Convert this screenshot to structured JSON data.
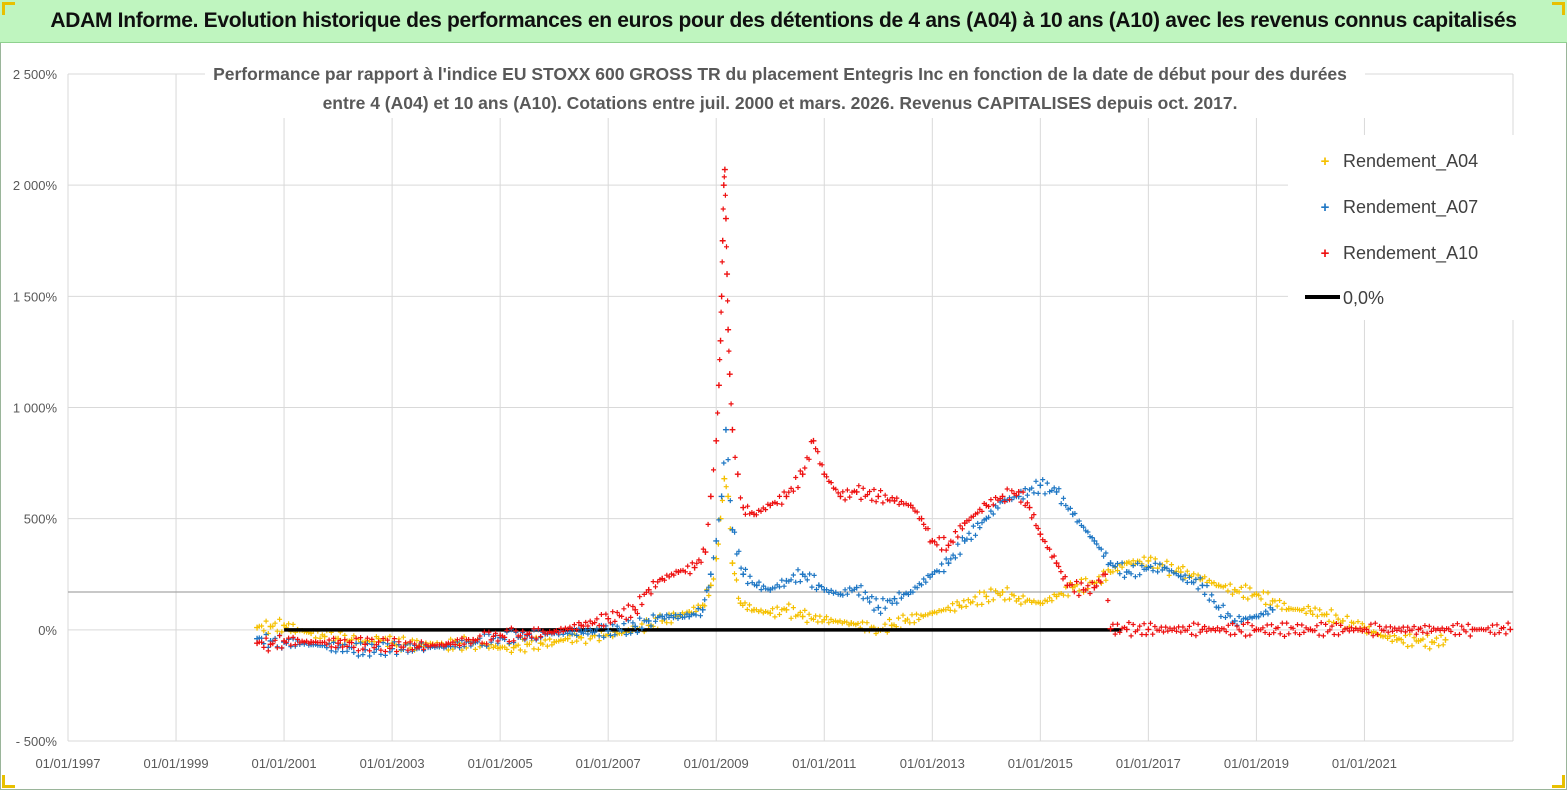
{
  "header": {
    "banner": "ADAM Informe. Evolution historique des performances en euros pour des détentions de 4 ans (A04) à 10 ans (A10) avec les revenus connus capitalisés"
  },
  "colors": {
    "banner_bg": "#bff5bf",
    "A04": "#f5c000",
    "A07": "#1f77c4",
    "A10": "#ee1111",
    "zero_line": "#000000",
    "grid": "#d9d9d9",
    "corner": "#e8c000"
  },
  "chart_data": {
    "type": "scatter",
    "title_lines": [
      "Performance par rapport à l'indice EU STOXX 600 GROSS TR  du placement Entegris Inc en fonction de la date de début pour des durées",
      "entre 4 (A04) et 10 ans (A10).  Cotations entre juil. 2000 et mars. 2026. Revenus CAPITALISES depuis oct. 2017."
    ],
    "xlabel": "",
    "ylabel": "",
    "xlim": [
      1997.0,
      2023.75
    ],
    "ylim": [
      -500,
      2500
    ],
    "x_tick_values": [
      1997,
      1999,
      2001,
      2003,
      2005,
      2007,
      2009,
      2011,
      2013,
      2015,
      2017,
      2019,
      2021
    ],
    "x_tick_labels": [
      "01/01/1997",
      "01/01/1999",
      "01/01/2001",
      "01/01/2003",
      "01/01/2005",
      "01/01/2007",
      "01/01/2009",
      "01/01/2011",
      "01/01/2013",
      "01/01/2015",
      "01/01/2017",
      "01/01/2019",
      "01/01/2021"
    ],
    "y_tick_values": [
      -500,
      0,
      500,
      1000,
      1500,
      2000,
      2500
    ],
    "y_tick_labels": [
      "- 500%",
      "0%",
      "500%",
      "1 000%",
      "1 500%",
      "2 000%",
      "2 500%"
    ],
    "grid": true,
    "reference_line_value": 170,
    "legend_position": "top-right",
    "legend": [
      "Rendement_A04",
      "Rendement_A07",
      "Rendement_A10",
      "0,0%"
    ],
    "series": [
      {
        "name": "Rendement_A04",
        "marker": "+",
        "points": [
          [
            2000.5,
            10
          ],
          [
            2000.75,
            15
          ],
          [
            2001.0,
            20
          ],
          [
            2001.25,
            0
          ],
          [
            2001.5,
            -15
          ],
          [
            2001.75,
            -30
          ],
          [
            2002.0,
            -40
          ],
          [
            2002.25,
            -45
          ],
          [
            2002.5,
            -55
          ],
          [
            2002.75,
            -40
          ],
          [
            2003.0,
            -60
          ],
          [
            2003.25,
            -65
          ],
          [
            2003.5,
            -70
          ],
          [
            2003.75,
            -65
          ],
          [
            2004.0,
            -70
          ],
          [
            2004.25,
            -60
          ],
          [
            2004.5,
            -60
          ],
          [
            2004.75,
            -70
          ],
          [
            2005.0,
            -80
          ],
          [
            2005.25,
            -80
          ],
          [
            2005.5,
            -65
          ],
          [
            2005.75,
            -60
          ],
          [
            2006.0,
            -55
          ],
          [
            2006.25,
            -40
          ],
          [
            2006.5,
            -35
          ],
          [
            2006.75,
            -25
          ],
          [
            2007.0,
            -20
          ],
          [
            2007.25,
            -15
          ],
          [
            2007.5,
            5
          ],
          [
            2007.75,
            20
          ],
          [
            2008.0,
            40
          ],
          [
            2008.25,
            60
          ],
          [
            2008.5,
            80
          ],
          [
            2008.75,
            110
          ],
          [
            2008.9,
            200
          ],
          [
            2009.0,
            320
          ],
          [
            2009.08,
            500
          ],
          [
            2009.15,
            680
          ],
          [
            2009.22,
            600
          ],
          [
            2009.3,
            300
          ],
          [
            2009.45,
            120
          ],
          [
            2009.7,
            90
          ],
          [
            2010.0,
            75
          ],
          [
            2010.3,
            90
          ],
          [
            2010.6,
            60
          ],
          [
            2011.0,
            45
          ],
          [
            2011.5,
            30
          ],
          [
            2012.0,
            0
          ],
          [
            2012.25,
            20
          ],
          [
            2012.5,
            40
          ],
          [
            2013.0,
            75
          ],
          [
            2013.5,
            110
          ],
          [
            2014.0,
            150
          ],
          [
            2014.3,
            170
          ],
          [
            2014.6,
            140
          ],
          [
            2015.0,
            120
          ],
          [
            2015.3,
            150
          ],
          [
            2015.6,
            190
          ],
          [
            2016.0,
            210
          ],
          [
            2016.3,
            260
          ],
          [
            2016.6,
            300
          ],
          [
            2017.0,
            310
          ],
          [
            2017.3,
            280
          ],
          [
            2017.6,
            260
          ],
          [
            2018.0,
            230
          ],
          [
            2018.3,
            200
          ],
          [
            2018.6,
            180
          ],
          [
            2019.0,
            160
          ],
          [
            2019.3,
            130
          ],
          [
            2019.6,
            95
          ],
          [
            2020.0,
            85
          ],
          [
            2020.3,
            70
          ],
          [
            2020.6,
            40
          ],
          [
            2021.0,
            10
          ],
          [
            2021.3,
            -25
          ],
          [
            2021.6,
            -45
          ],
          [
            2022.0,
            -50
          ],
          [
            2022.25,
            -55
          ],
          [
            2022.5,
            -45
          ]
        ]
      },
      {
        "name": "Rendement_A07",
        "marker": "+",
        "points": [
          [
            2000.5,
            -40
          ],
          [
            2000.75,
            -50
          ],
          [
            2001.0,
            -55
          ],
          [
            2001.5,
            -65
          ],
          [
            2002.0,
            -80
          ],
          [
            2002.5,
            -90
          ],
          [
            2003.0,
            -85
          ],
          [
            2003.5,
            -80
          ],
          [
            2004.0,
            -75
          ],
          [
            2004.5,
            -55
          ],
          [
            2005.0,
            -35
          ],
          [
            2005.5,
            -25
          ],
          [
            2006.0,
            -15
          ],
          [
            2006.5,
            -10
          ],
          [
            2007.0,
            -5
          ],
          [
            2007.5,
            15
          ],
          [
            2007.75,
            40
          ],
          [
            2008.0,
            60
          ],
          [
            2008.5,
            60
          ],
          [
            2008.75,
            90
          ],
          [
            2008.9,
            250
          ],
          [
            2009.0,
            400
          ],
          [
            2009.1,
            600
          ],
          [
            2009.18,
            900
          ],
          [
            2009.3,
            450
          ],
          [
            2009.5,
            250
          ],
          [
            2009.75,
            200
          ],
          [
            2010.0,
            180
          ],
          [
            2010.3,
            220
          ],
          [
            2010.6,
            250
          ],
          [
            2010.9,
            200
          ],
          [
            2011.0,
            180
          ],
          [
            2011.3,
            160
          ],
          [
            2011.6,
            190
          ],
          [
            2012.0,
            100
          ],
          [
            2012.3,
            140
          ],
          [
            2012.6,
            170
          ],
          [
            2013.0,
            250
          ],
          [
            2013.3,
            300
          ],
          [
            2013.6,
            400
          ],
          [
            2014.0,
            500
          ],
          [
            2014.3,
            580
          ],
          [
            2014.6,
            600
          ],
          [
            2015.0,
            650
          ],
          [
            2015.3,
            620
          ],
          [
            2015.6,
            520
          ],
          [
            2016.0,
            400
          ],
          [
            2016.3,
            300
          ],
          [
            2016.6,
            260
          ],
          [
            2017.0,
            280
          ],
          [
            2017.3,
            280
          ],
          [
            2017.6,
            240
          ],
          [
            2018.0,
            200
          ],
          [
            2018.3,
            100
          ],
          [
            2018.6,
            40
          ],
          [
            2019.0,
            60
          ],
          [
            2019.3,
            90
          ]
        ]
      },
      {
        "name": "Rendement_A10",
        "marker": "+",
        "points": [
          [
            2000.5,
            -60
          ],
          [
            2000.75,
            -65
          ],
          [
            2001.0,
            -50
          ],
          [
            2001.5,
            -55
          ],
          [
            2002.0,
            -60
          ],
          [
            2002.5,
            -65
          ],
          [
            2003.0,
            -70
          ],
          [
            2003.5,
            -75
          ],
          [
            2004.0,
            -65
          ],
          [
            2004.5,
            -45
          ],
          [
            2005.0,
            -25
          ],
          [
            2005.5,
            -20
          ],
          [
            2006.0,
            -10
          ],
          [
            2006.5,
            20
          ],
          [
            2007.0,
            50
          ],
          [
            2007.5,
            90
          ],
          [
            2007.75,
            180
          ],
          [
            2008.0,
            230
          ],
          [
            2008.3,
            260
          ],
          [
            2008.6,
            280
          ],
          [
            2008.8,
            350
          ],
          [
            2008.9,
            600
          ],
          [
            2009.0,
            850
          ],
          [
            2009.05,
            1100
          ],
          [
            2009.08,
            1300
          ],
          [
            2009.1,
            1500
          ],
          [
            2009.12,
            1750
          ],
          [
            2009.14,
            2000
          ],
          [
            2009.16,
            2070
          ],
          [
            2009.18,
            1850
          ],
          [
            2009.2,
            1600
          ],
          [
            2009.22,
            1350
          ],
          [
            2009.25,
            1150
          ],
          [
            2009.3,
            900
          ],
          [
            2009.4,
            700
          ],
          [
            2009.5,
            550
          ],
          [
            2009.7,
            520
          ],
          [
            2010.0,
            560
          ],
          [
            2010.3,
            600
          ],
          [
            2010.6,
            700
          ],
          [
            2010.8,
            850
          ],
          [
            2011.0,
            700
          ],
          [
            2011.3,
            600
          ],
          [
            2011.6,
            620
          ],
          [
            2012.0,
            600
          ],
          [
            2012.3,
            580
          ],
          [
            2012.6,
            560
          ],
          [
            2012.8,
            500
          ],
          [
            2013.0,
            400
          ],
          [
            2013.3,
            380
          ],
          [
            2013.6,
            480
          ],
          [
            2014.0,
            560
          ],
          [
            2014.3,
            600
          ],
          [
            2014.6,
            620
          ],
          [
            2014.8,
            550
          ],
          [
            2015.0,
            430
          ],
          [
            2015.3,
            300
          ],
          [
            2015.5,
            200
          ],
          [
            2015.8,
            180
          ],
          [
            2016.0,
            190
          ],
          [
            2016.2,
            250
          ],
          [
            2016.3,
            5
          ],
          [
            2016.6,
            2
          ],
          [
            2017.0,
            2
          ],
          [
            2018.0,
            2
          ],
          [
            2019.0,
            2
          ],
          [
            2020.0,
            2
          ],
          [
            2021.0,
            2
          ],
          [
            2022.0,
            2
          ],
          [
            2023.0,
            2
          ],
          [
            2023.7,
            2
          ]
        ]
      },
      {
        "name": "0,0%",
        "marker": "line",
        "points": [
          [
            2001.0,
            0
          ],
          [
            2016.5,
            0
          ]
        ]
      }
    ]
  }
}
